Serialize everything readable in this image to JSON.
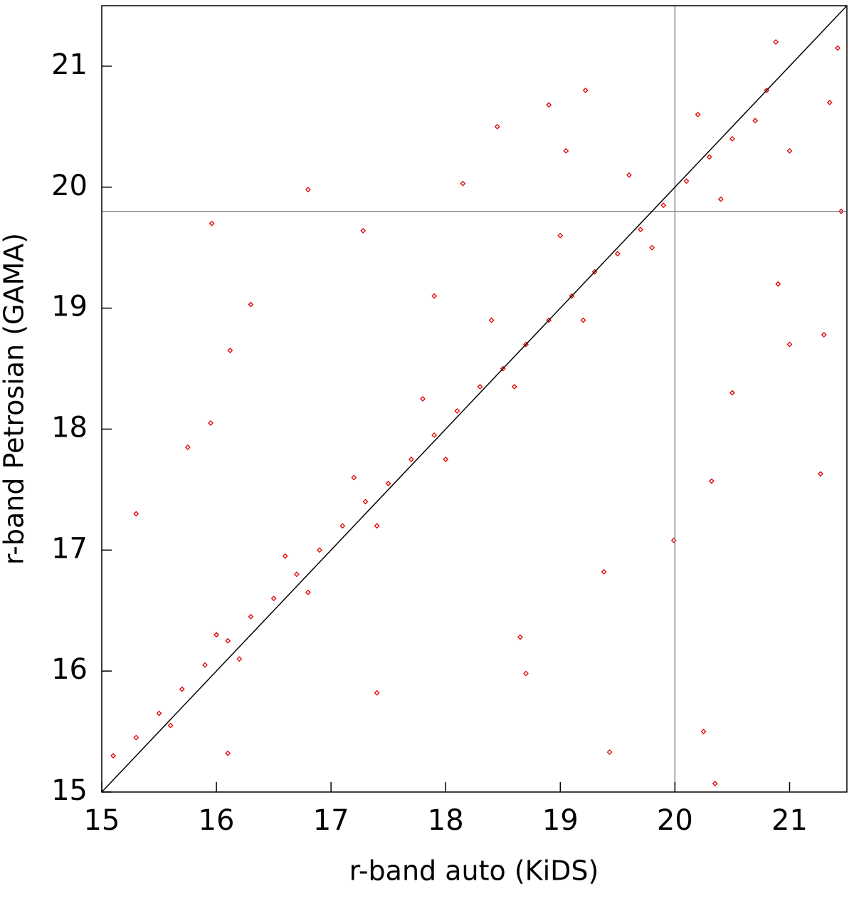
{
  "chart_data": {
    "type": "scatter",
    "xlabel": "r-band auto (KiDS)",
    "ylabel": "r-band Petrosian (GAMA)",
    "xlim": [
      15,
      21.5
    ],
    "ylim": [
      15,
      21.5
    ],
    "xticks": [
      15,
      16,
      17,
      18,
      19,
      20,
      21
    ],
    "yticks": [
      15,
      16,
      17,
      18,
      19,
      20,
      21
    ],
    "color": "#e00000",
    "diagonal": true,
    "vlines": [
      20
    ],
    "hlines": [
      19.8
    ],
    "x": [
      15.1,
      15.3,
      15.5,
      15.7,
      15.9,
      16.1,
      16.3,
      16.5,
      16.7,
      16.9,
      17.1,
      17.3,
      17.5,
      17.7,
      17.9,
      18.1,
      18.3,
      18.5,
      18.7,
      18.9,
      19.1,
      19.3,
      19.5,
      19.7,
      19.9,
      20.1,
      20.3,
      20.5,
      20.7,
      15.6,
      16.2,
      16.8,
      17.4,
      18.0,
      18.6,
      19.2,
      19.8,
      20.4,
      21.0,
      16.0,
      16.6,
      17.2,
      17.8,
      18.4,
      19.0,
      19.6,
      20.2,
      20.8,
      15.96,
      16.3,
      16.8,
      16.12,
      15.95,
      15.75,
      15.3,
      17.4,
      16.1,
      18.7,
      19.43,
      20.25,
      20.35,
      21.27,
      20.32,
      19.99,
      19.38,
      18.65,
      19.22,
      18.9,
      20.88,
      21.42,
      21.3,
      21.45,
      17.28,
      18.15,
      18.45,
      19.05,
      20.5,
      21.0,
      20.9,
      17.9,
      21.35
    ],
    "y": [
      15.3,
      15.45,
      15.65,
      15.85,
      16.05,
      16.25,
      16.45,
      16.6,
      16.8,
      17.0,
      17.2,
      17.4,
      17.55,
      17.75,
      17.95,
      18.15,
      18.35,
      18.5,
      18.7,
      18.9,
      19.1,
      19.3,
      19.45,
      19.65,
      19.85,
      20.05,
      20.25,
      20.4,
      20.55,
      15.55,
      16.1,
      16.65,
      17.2,
      17.75,
      18.35,
      18.9,
      19.5,
      19.9,
      20.3,
      16.3,
      16.95,
      17.6,
      18.25,
      18.9,
      19.6,
      20.1,
      20.6,
      20.8,
      19.7,
      19.03,
      19.98,
      18.65,
      18.05,
      17.85,
      17.3,
      15.82,
      15.32,
      15.98,
      15.33,
      15.5,
      15.07,
      17.63,
      17.57,
      17.08,
      16.82,
      16.28,
      20.8,
      20.68,
      21.2,
      21.15,
      18.78,
      19.8,
      19.64,
      20.03,
      20.5,
      20.3,
      18.3,
      18.7,
      19.2,
      19.1,
      20.7
    ]
  }
}
